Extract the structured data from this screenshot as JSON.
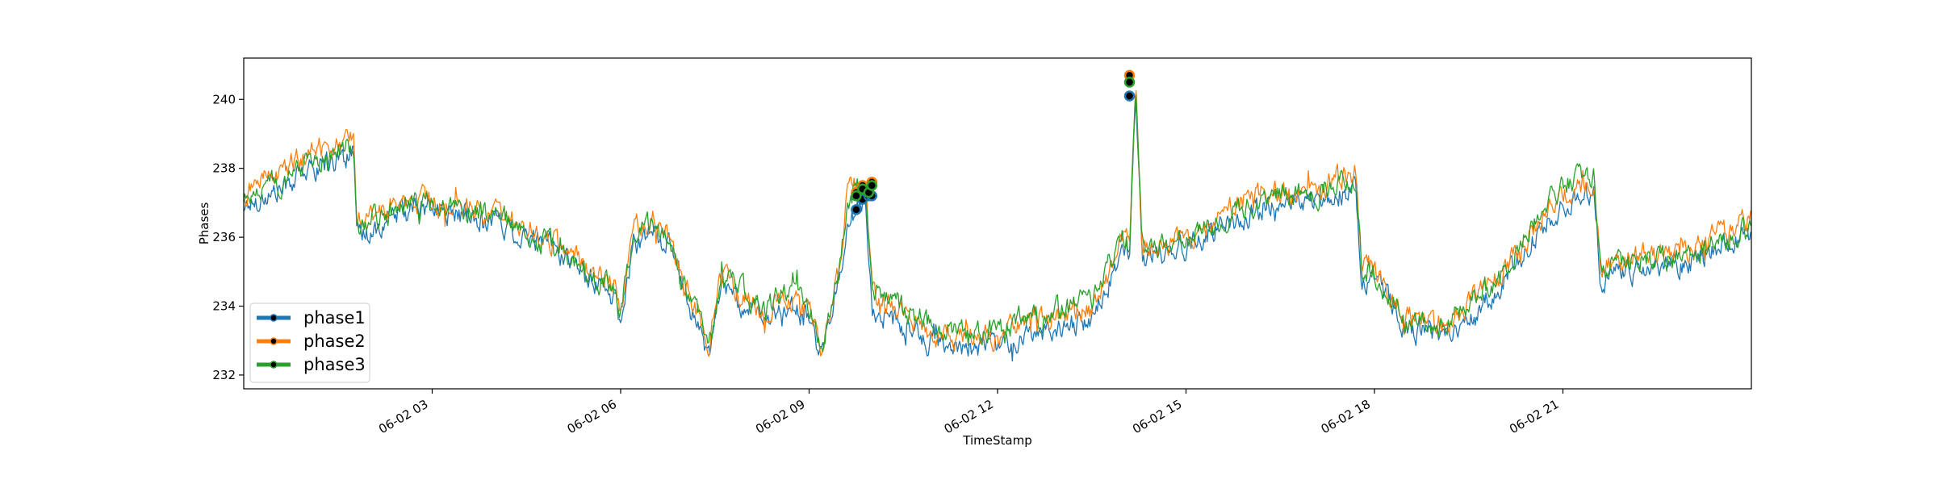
{
  "chart_data": {
    "type": "line",
    "xlabel": "TimeStamp",
    "ylabel": "Phases",
    "x_range": [
      "06-02 00:00",
      "06-02 23:59"
    ],
    "ylim": [
      231.6,
      241.2
    ],
    "x_ticks": [
      "06-02 03",
      "06-02 06",
      "06-02 09",
      "06-02 12",
      "06-02 15",
      "06-02 18",
      "06-02 21"
    ],
    "x_tick_hours": [
      3,
      6,
      9,
      12,
      15,
      18,
      21
    ],
    "y_ticks": [
      232,
      234,
      236,
      238,
      240
    ],
    "legend_position": "lower-left",
    "grid": false,
    "anchor_hours": [
      0.0,
      0.5,
      1.0,
      1.5,
      1.75,
      1.8,
      2.5,
      3.0,
      3.5,
      4.0,
      4.5,
      5.0,
      5.5,
      5.9,
      6.0,
      6.2,
      6.5,
      6.8,
      7.0,
      7.3,
      7.4,
      7.6,
      8.0,
      8.3,
      8.6,
      9.0,
      9.2,
      9.5,
      9.6,
      9.75,
      9.9,
      10.0,
      10.5,
      11.0,
      11.5,
      12.0,
      12.5,
      13.0,
      13.5,
      14.0,
      14.1,
      14.2,
      14.3,
      14.5,
      15.0,
      15.5,
      16.0,
      16.5,
      17.0,
      17.7,
      17.8,
      18.0,
      18.5,
      19.0,
      19.5,
      20.0,
      20.5,
      21.0,
      21.5,
      21.6,
      22.0,
      23.0,
      23.99
    ],
    "series": [
      {
        "name": "phase1",
        "color": "#1f77b4",
        "values": [
          236.9,
          237.3,
          237.9,
          238.3,
          238.4,
          235.9,
          236.7,
          236.8,
          236.6,
          236.5,
          236.0,
          235.6,
          234.8,
          234.2,
          233.6,
          235.7,
          236.2,
          235.7,
          234.4,
          233.2,
          232.4,
          234.6,
          234.0,
          233.5,
          234.0,
          233.6,
          232.5,
          235.0,
          236.5,
          236.7,
          237.1,
          234.0,
          233.4,
          232.9,
          232.7,
          232.9,
          233.2,
          233.4,
          233.6,
          235.6,
          235.4,
          240.0,
          235.4,
          235.5,
          235.7,
          236.2,
          236.7,
          236.9,
          237.1,
          237.4,
          234.8,
          234.7,
          233.4,
          233.1,
          233.7,
          234.5,
          235.9,
          236.9,
          237.3,
          234.8,
          235.0,
          235.3,
          236.1
        ]
      },
      {
        "name": "phase2",
        "color": "#ff7f0e",
        "values": [
          237.3,
          237.8,
          238.4,
          238.9,
          238.9,
          236.4,
          237.1,
          237.0,
          236.9,
          236.8,
          236.3,
          235.9,
          235.1,
          234.5,
          233.8,
          236.1,
          236.5,
          236.0,
          234.7,
          233.5,
          232.8,
          234.9,
          234.3,
          233.8,
          234.3,
          233.9,
          232.8,
          235.3,
          237.2,
          237.4,
          237.6,
          234.4,
          233.7,
          233.2,
          233.0,
          233.1,
          233.5,
          233.7,
          233.9,
          235.9,
          235.7,
          240.7,
          235.7,
          235.8,
          236.0,
          236.5,
          237.2,
          237.3,
          237.3,
          237.9,
          235.2,
          235.0,
          233.7,
          233.3,
          234.0,
          234.9,
          236.2,
          237.3,
          237.6,
          235.2,
          235.4,
          235.6,
          236.5
        ]
      },
      {
        "name": "phase3",
        "color": "#2ca02c",
        "values": [
          237.1,
          237.6,
          238.1,
          238.6,
          238.7,
          236.2,
          236.9,
          236.9,
          236.8,
          236.7,
          236.1,
          235.8,
          235.0,
          234.4,
          233.7,
          236.0,
          236.4,
          235.9,
          234.6,
          233.4,
          232.7,
          234.8,
          234.4,
          233.8,
          234.5,
          234.0,
          232.7,
          235.3,
          236.9,
          237.3,
          237.4,
          234.5,
          233.9,
          233.4,
          233.2,
          233.3,
          233.7,
          233.9,
          234.1,
          236.0,
          235.8,
          240.5,
          235.8,
          235.9,
          236.1,
          236.4,
          237.0,
          237.2,
          237.2,
          237.8,
          235.1,
          235.0,
          233.6,
          233.4,
          234.0,
          234.8,
          236.4,
          237.6,
          237.8,
          235.1,
          235.3,
          235.5,
          236.3
        ]
      }
    ],
    "markers": {
      "hours": [
        9.75,
        9.85,
        9.95,
        10.0,
        14.1
      ],
      "phase1": [
        236.8,
        237.1,
        237.2,
        237.2,
        240.1
      ],
      "phase2": [
        237.3,
        237.5,
        237.4,
        237.6,
        240.7
      ],
      "phase3": [
        237.2,
        237.4,
        237.3,
        237.5,
        240.5
      ]
    }
  }
}
